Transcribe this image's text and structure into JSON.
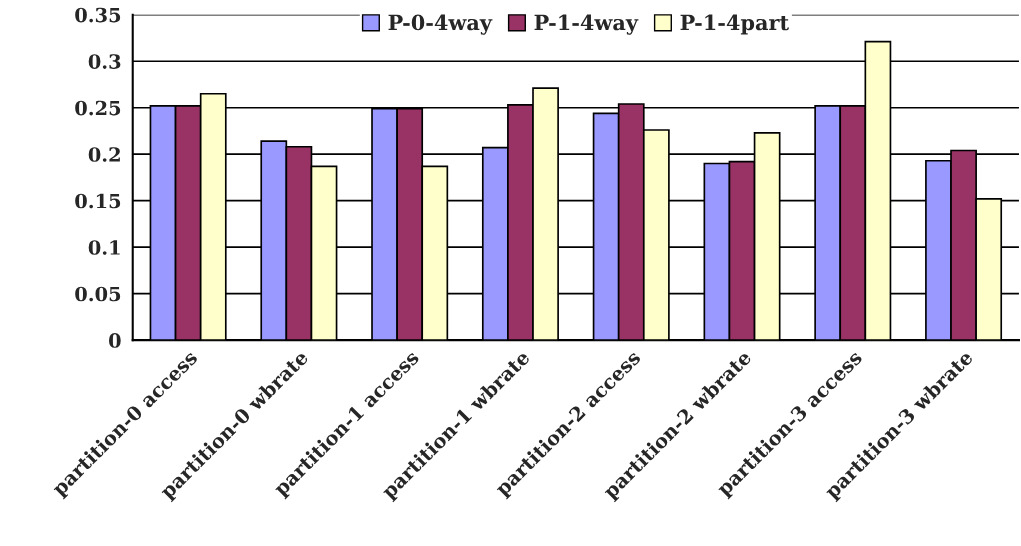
{
  "chart_data": {
    "type": "bar",
    "categories": [
      "partition-0 access",
      "partition-0 wbrate",
      "partition-1 access",
      "partition-1 wbrate",
      "partition-2 access",
      "partition-2 wbrate",
      "partition-3 access",
      "partition-3 wbrate"
    ],
    "series": [
      {
        "name": "P-0-4way",
        "color": "#9999ff",
        "values": [
          0.252,
          0.214,
          0.249,
          0.207,
          0.244,
          0.19,
          0.252,
          0.193
        ]
      },
      {
        "name": "P-1-4way",
        "color": "#993366",
        "values": [
          0.252,
          0.208,
          0.249,
          0.253,
          0.254,
          0.192,
          0.252,
          0.204
        ]
      },
      {
        "name": "P-1-4part",
        "color": "#ffffcc",
        "values": [
          0.265,
          0.187,
          0.187,
          0.271,
          0.226,
          0.223,
          0.321,
          0.152
        ]
      }
    ],
    "ylim": [
      0,
      0.35
    ],
    "yticks": [
      {
        "value": 0,
        "label": "0"
      },
      0.05,
      0.1,
      0.15,
      0.2,
      0.25,
      0.3,
      0.35
    ],
    "grid": "y",
    "legend": "top"
  }
}
